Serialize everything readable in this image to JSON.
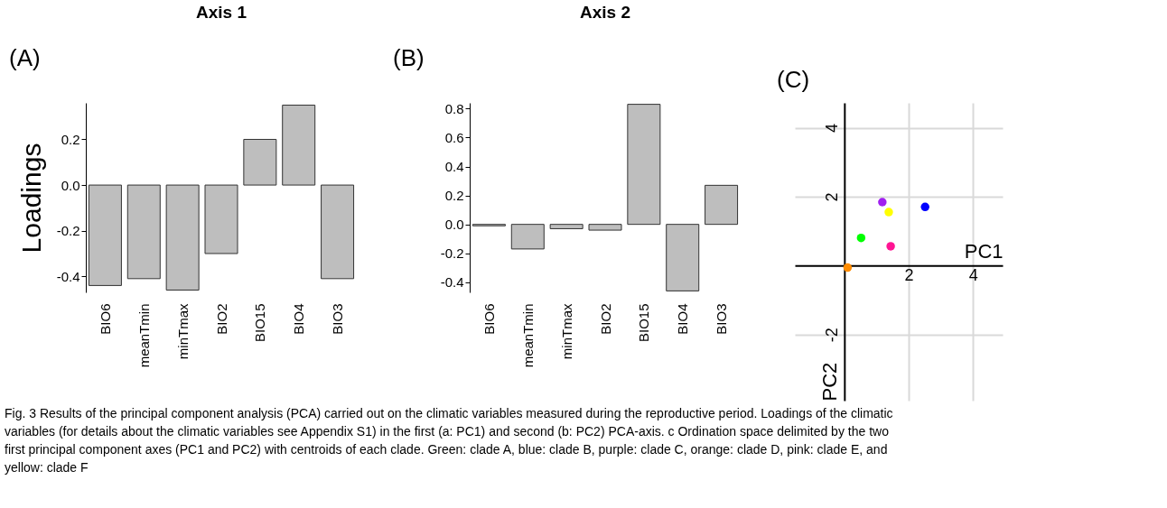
{
  "chart_data": [
    {
      "type": "bar",
      "title": "Axis 1",
      "ylabel": "Loadings",
      "categories": [
        "BIO6",
        "meanTmin",
        "minTmax",
        "BIO2",
        "BIO15",
        "BIO4",
        "BIO3"
      ],
      "values": [
        -0.44,
        -0.41,
        -0.46,
        -0.3,
        0.2,
        0.35,
        -0.41
      ],
      "color": "#bebebe",
      "ylim": [
        -0.47,
        0.36
      ],
      "yticks": [
        {
          "value": -0.4,
          "label": "-0.4"
        },
        {
          "value": -0.2,
          "label": "-0.2"
        },
        {
          "value": 0,
          "label": "0.0"
        },
        {
          "value": 0.2,
          "label": "0.2"
        }
      ],
      "grid": false,
      "annotations": [
        "(A)",
        "Fig. 3 Results of the principal component analysis (PCA) carried out on the climatic variables measured during the reproductive period. Loadings of the climatic variables (for details about the climatic variables see Appendix S1) in the first (a: PC1) and second (b: PC2) PCA-axis. c Ordination space delimited by the two first principal component axes (PC1 and PC2) with centroids of each clade. Green: clade A, blue: clade B, purple: clade C, orange: clade D, pink: clade E, and yellow: clade F"
      ]
    },
    {
      "type": "bar",
      "title": "Axis 2",
      "categories": [
        "BIO6",
        "meanTmin",
        "minTmax",
        "BIO2",
        "BIO15",
        "BIO4",
        "BIO3"
      ],
      "values": [
        -0.01,
        -0.17,
        -0.03,
        -0.04,
        0.83,
        -0.46,
        0.27
      ],
      "color": "#bebebe",
      "ylim": [
        -0.47,
        0.84
      ],
      "yticks": [
        {
          "value": -0.4,
          "label": "-0.4"
        },
        {
          "value": -0.2,
          "label": "-0.2"
        },
        {
          "value": 0,
          "label": "0.0"
        },
        {
          "value": 0.2,
          "label": "0.2"
        },
        {
          "value": 0.4,
          "label": "0.4"
        },
        {
          "value": 0.6,
          "label": "0.6"
        },
        {
          "value": 0.8,
          "label": "0.8"
        }
      ],
      "grid": false,
      "annotations": [
        "(B)"
      ]
    },
    {
      "type": "scatter",
      "xlabel": "PC1",
      "ylabel": "PC2",
      "x": [
        0.52,
        2.51,
        1.18,
        0.1,
        1.44,
        1.38
      ],
      "values": [
        0.8,
        1.7,
        1.84,
        -0.06,
        0.56,
        1.55
      ],
      "colors": [
        "#00ff00",
        "#0000ff",
        "#a020f0",
        "#ff8c00",
        "#ff1493",
        "#ffff00"
      ],
      "xlim": [
        -1.54,
        4.92
      ],
      "ylim": [
        -3.92,
        4.72
      ],
      "xticks": [
        2,
        4
      ],
      "yticks": [
        {
          "value": -2,
          "label": "-2"
        },
        2,
        4
      ],
      "grid": true,
      "marker": "circle",
      "annotations": [
        "(C)"
      ]
    }
  ]
}
